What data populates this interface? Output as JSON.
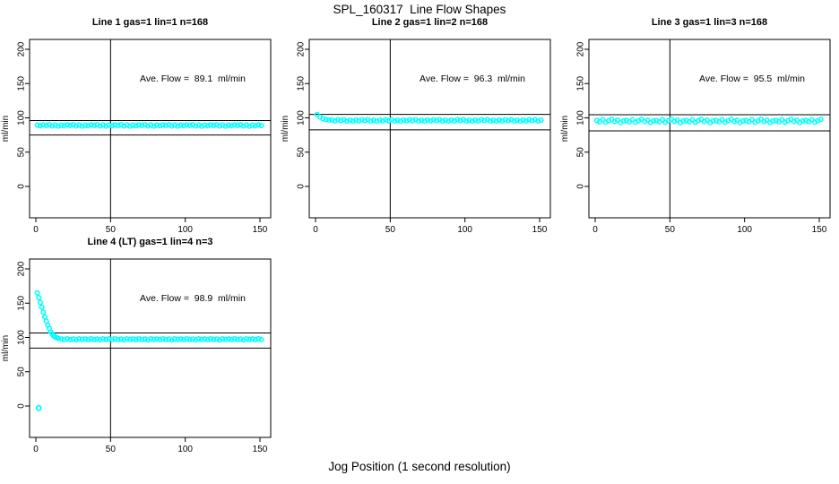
{
  "figure": {
    "main_title": "SPL_160317  Line Flow Shapes",
    "x_axis_label": "Jog Position (1 second resolution)",
    "colors": {
      "points": "#00ffff",
      "axis": "#000000",
      "background": "#ffffff"
    }
  },
  "chart_data": [
    {
      "type": "scatter",
      "title": "Line 1 gas=1 lin=1 n=168",
      "annotation": "Ave. Flow =  89.1  ml/min",
      "ave_flow": 89.1,
      "ylabel": "ml/min",
      "x_ticks": [
        0,
        50,
        100,
        150
      ],
      "y_ticks": [
        0,
        50,
        100,
        150,
        200
      ],
      "xlim": [
        -6,
        157
      ],
      "ylim": [
        -46,
        214
      ],
      "vline_x": 50,
      "ref_lines": [
        96,
        75
      ],
      "points": {
        "x": [
          1,
          3,
          5,
          7,
          9,
          11,
          13,
          15,
          17,
          19,
          21,
          23,
          25,
          27,
          29,
          31,
          33,
          35,
          37,
          39,
          41,
          43,
          45,
          47,
          49,
          51,
          53,
          55,
          57,
          59,
          61,
          63,
          65,
          67,
          69,
          71,
          73,
          75,
          77,
          79,
          81,
          83,
          85,
          87,
          89,
          91,
          93,
          95,
          97,
          99,
          101,
          103,
          105,
          107,
          109,
          111,
          113,
          115,
          117,
          119,
          121,
          123,
          125,
          127,
          129,
          131,
          133,
          135,
          137,
          139,
          141,
          143,
          145,
          147,
          149,
          151
        ],
        "y": [
          89.4,
          88.5,
          90.0,
          88.8,
          90.2,
          88.2,
          89.6,
          87.9,
          89.4,
          88.5,
          90.0,
          88.8,
          90.2,
          88.2,
          89.6,
          87.9,
          89.4,
          88.5,
          90.0,
          88.8,
          90.2,
          88.2,
          89.6,
          87.9,
          89.4,
          88.5,
          90.0,
          88.8,
          90.2,
          88.2,
          89.6,
          87.9,
          89.4,
          88.5,
          90.0,
          88.8,
          90.2,
          88.2,
          89.6,
          87.9,
          89.4,
          88.5,
          90.0,
          88.8,
          90.2,
          88.2,
          89.6,
          87.9,
          89.4,
          88.5,
          90.0,
          88.8,
          90.2,
          88.2,
          89.6,
          87.9,
          89.4,
          88.5,
          90.0,
          88.8,
          90.2,
          88.2,
          89.6,
          87.9,
          89.4,
          88.5,
          90.0,
          88.8,
          90.2,
          88.2,
          89.6,
          87.9,
          89.4,
          88.5,
          90.0,
          88.8
        ]
      },
      "outliers": []
    },
    {
      "type": "scatter",
      "title": "Line 2 gas=1 lin=2 n=168",
      "annotation": "Ave. Flow =  96.3  ml/min",
      "ave_flow": 96.3,
      "ylabel": "ml/min",
      "x_ticks": [
        0,
        50,
        100,
        150
      ],
      "y_ticks": [
        0,
        50,
        100,
        150,
        200
      ],
      "xlim": [
        -6,
        157
      ],
      "ylim": [
        -46,
        214
      ],
      "vline_x": 50,
      "ref_lines": [
        105,
        82.5
      ],
      "points": {
        "x": [
          1,
          3,
          5,
          7,
          9,
          11,
          13,
          15,
          17,
          19,
          21,
          23,
          25,
          27,
          29,
          31,
          33,
          35,
          37,
          39,
          41,
          43,
          45,
          47,
          49,
          51,
          53,
          55,
          57,
          59,
          61,
          63,
          65,
          67,
          69,
          71,
          73,
          75,
          77,
          79,
          81,
          83,
          85,
          87,
          89,
          91,
          93,
          95,
          97,
          99,
          101,
          103,
          105,
          107,
          109,
          111,
          113,
          115,
          117,
          119,
          121,
          123,
          125,
          127,
          129,
          131,
          133,
          135,
          137,
          139,
          141,
          143,
          145,
          147,
          149,
          151
        ],
        "y": [
          104.8,
          101.2,
          98.6,
          97.5,
          96.9,
          96.9,
          95.7,
          97.2,
          96.0,
          97.4,
          95.4,
          96.6,
          95.1,
          96.9,
          95.7,
          97.2,
          96.0,
          97.4,
          95.4,
          96.6,
          95.1,
          96.9,
          95.7,
          97.2,
          96.0,
          97.4,
          95.4,
          96.6,
          95.1,
          96.9,
          95.7,
          97.2,
          96.0,
          97.4,
          95.4,
          96.6,
          95.1,
          96.9,
          95.7,
          97.2,
          96.0,
          97.4,
          95.4,
          96.6,
          95.1,
          96.9,
          95.7,
          97.2,
          96.0,
          97.4,
          95.4,
          96.6,
          95.1,
          96.9,
          95.7,
          97.2,
          96.0,
          97.4,
          95.4,
          96.6,
          95.1,
          96.9,
          95.7,
          97.2,
          96.0,
          97.4,
          95.4,
          96.6,
          95.1,
          96.9,
          95.7,
          97.2,
          96.0,
          97.4,
          95.4,
          96.6
        ]
      },
      "outliers": []
    },
    {
      "type": "scatter",
      "title": "Line 3 gas=1 lin=3 n=168",
      "annotation": "Ave. Flow =  95.5  ml/min",
      "ave_flow": 95.5,
      "ylabel": "ml/min",
      "x_ticks": [
        0,
        50,
        100,
        150
      ],
      "y_ticks": [
        0,
        50,
        100,
        150,
        200
      ],
      "xlim": [
        -6,
        157
      ],
      "ylim": [
        -46,
        214
      ],
      "vline_x": 50,
      "ref_lines": [
        104.5,
        81
      ],
      "points": {
        "x": [
          1,
          3,
          5,
          7,
          9,
          11,
          13,
          15,
          17,
          19,
          21,
          23,
          25,
          27,
          29,
          31,
          33,
          35,
          37,
          39,
          41,
          43,
          45,
          47,
          49,
          51,
          53,
          55,
          57,
          59,
          61,
          63,
          65,
          67,
          69,
          71,
          73,
          75,
          77,
          79,
          81,
          83,
          85,
          87,
          89,
          91,
          93,
          95,
          97,
          99,
          101,
          103,
          105,
          107,
          109,
          111,
          113,
          115,
          117,
          119,
          121,
          123,
          125,
          127,
          129,
          131,
          133,
          135,
          137,
          139,
          141,
          143,
          145,
          147,
          149,
          151
        ],
        "y": [
          96.2,
          94.3,
          97.3,
          93.6,
          95.9,
          97.8,
          94.8,
          96.6,
          93.2,
          95.6,
          96.2,
          94.3,
          97.3,
          93.6,
          95.9,
          97.8,
          94.8,
          96.6,
          93.2,
          95.6,
          96.2,
          94.3,
          97.3,
          93.6,
          95.9,
          97.8,
          94.8,
          96.6,
          93.2,
          95.6,
          96.2,
          94.3,
          97.3,
          93.6,
          95.9,
          97.8,
          94.8,
          96.6,
          93.2,
          95.6,
          96.2,
          94.3,
          97.3,
          93.6,
          95.9,
          97.8,
          94.8,
          96.6,
          93.2,
          95.6,
          96.2,
          94.3,
          97.3,
          93.6,
          95.9,
          97.8,
          94.8,
          96.6,
          93.2,
          95.6,
          96.2,
          94.3,
          97.3,
          93.6,
          95.9,
          97.8,
          94.8,
          96.6,
          93.2,
          95.6,
          96.2,
          94.3,
          97.3,
          93.6,
          95.9,
          97.8
        ]
      },
      "outliers": []
    },
    {
      "type": "scatter",
      "title": "Line 4 (LT) gas=1 lin=4 n=3",
      "annotation": "Ave. Flow =  98.9  ml/min",
      "ave_flow": 98.9,
      "ylabel": "ml/min",
      "x_ticks": [
        0,
        50,
        100,
        150
      ],
      "y_ticks": [
        0,
        50,
        100,
        150,
        200
      ],
      "xlim": [
        -6,
        157
      ],
      "ylim": [
        -46,
        214
      ],
      "vline_x": 50,
      "ref_lines": [
        106.5,
        84.5
      ],
      "points": {
        "x": [
          1,
          2,
          3,
          4,
          5,
          6,
          7,
          8,
          9,
          10,
          11,
          12,
          13,
          14,
          15,
          17,
          19,
          21,
          23,
          25,
          27,
          29,
          31,
          33,
          35,
          37,
          39,
          41,
          43,
          45,
          47,
          49,
          51,
          53,
          55,
          57,
          59,
          61,
          63,
          65,
          67,
          69,
          71,
          73,
          75,
          77,
          79,
          81,
          83,
          85,
          87,
          89,
          91,
          93,
          95,
          97,
          99,
          101,
          103,
          105,
          107,
          109,
          111,
          113,
          115,
          117,
          119,
          121,
          123,
          125,
          127,
          129,
          131,
          133,
          135,
          137,
          139,
          141,
          143,
          145,
          147,
          149,
          151
        ],
        "y": [
          165,
          158,
          151,
          144,
          137,
          130,
          124,
          118,
          113,
          108,
          105,
          102.5,
          100.5,
          99.5,
          98.8,
          97.8,
          96.8,
          98.1,
          96.9,
          97.6,
          96.4,
          97.9,
          97.1,
          97.8,
          96.8,
          98.1,
          96.9,
          97.6,
          96.4,
          97.9,
          97.1,
          97.8,
          96.8,
          98.1,
          96.9,
          97.6,
          96.4,
          97.9,
          97.1,
          97.8,
          96.8,
          98.1,
          96.9,
          97.6,
          96.4,
          97.9,
          97.1,
          97.8,
          96.8,
          98.1,
          96.9,
          97.6,
          96.4,
          97.9,
          97.1,
          97.8,
          96.8,
          98.1,
          96.9,
          97.6,
          96.4,
          97.9,
          97.1,
          97.8,
          96.8,
          98.1,
          96.9,
          97.6,
          96.4,
          97.9,
          97.1,
          97.8,
          96.8,
          98.1,
          96.9,
          97.6,
          96.4,
          97.9,
          97.1,
          97.8,
          96.8,
          98.1,
          96.9
        ]
      },
      "outliers": [
        [
          2,
          -3
        ]
      ]
    }
  ]
}
